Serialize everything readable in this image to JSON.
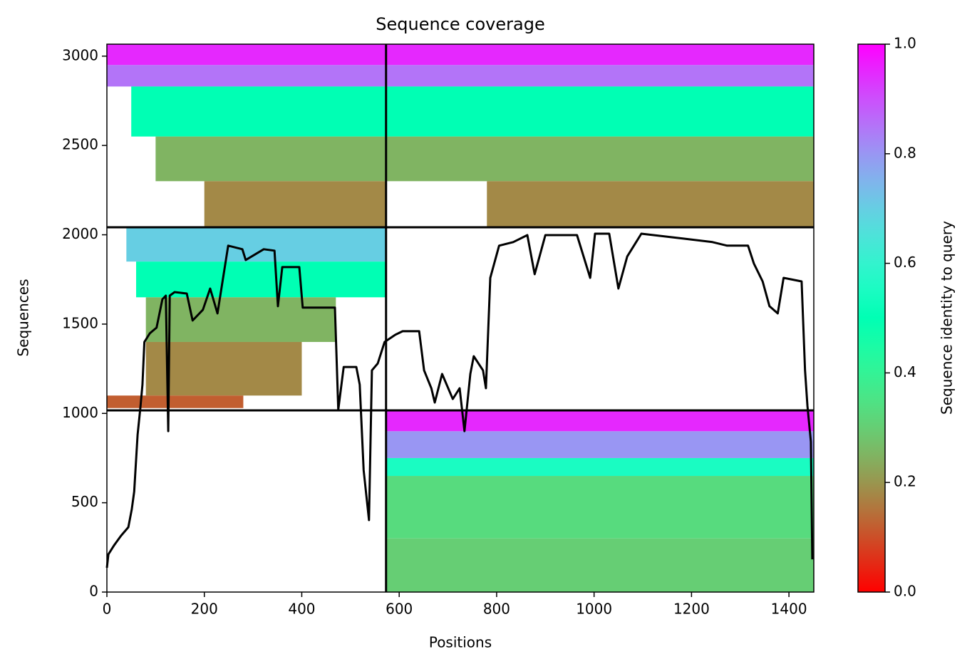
{
  "chart_data": {
    "type": "coverage",
    "title": "Sequence coverage",
    "xlabel": "Positions",
    "ylabel": "Sequences",
    "xlim": [
      0,
      1451
    ],
    "ylim": [
      0,
      3067
    ],
    "xticks": [
      0,
      200,
      400,
      600,
      800,
      1000,
      1200,
      1400
    ],
    "yticks": [
      0,
      500,
      1000,
      1500,
      2000,
      2500,
      3000
    ],
    "colormap": "rainbow_r",
    "colorbar": {
      "label": "Sequence identity to query",
      "lim": [
        0,
        1
      ],
      "ticks": [
        {
          "value": 0,
          "label": "0.0"
        },
        {
          "value": 0.2,
          "label": "0.2"
        },
        {
          "value": 0.4,
          "label": "0.4"
        },
        {
          "value": 0.6,
          "label": "0.6"
        },
        {
          "value": 0.8,
          "label": "0.8"
        },
        {
          "value": 1,
          "label": "1.0"
        }
      ]
    },
    "dividers": {
      "x": [
        573
      ],
      "y": [
        1017,
        2042
      ],
      "color": "#000000"
    },
    "heatmap": [
      {
        "x": [
          0,
          573
        ],
        "y": [
          2950,
          3067
        ],
        "identity": 0.95
      },
      {
        "x": [
          0,
          573
        ],
        "y": [
          2830,
          2950
        ],
        "identity": 0.85
      },
      {
        "x": [
          50,
          573
        ],
        "y": [
          2550,
          2830
        ],
        "identity": 0.5
      },
      {
        "x": [
          100,
          573
        ],
        "y": [
          2300,
          2550
        ],
        "identity": 0.25
      },
      {
        "x": [
          200,
          573
        ],
        "y": [
          2042,
          2300
        ],
        "identity": 0.18
      },
      {
        "x": [
          573,
          1451
        ],
        "y": [
          2950,
          3067
        ],
        "identity": 0.95
      },
      {
        "x": [
          573,
          1451
        ],
        "y": [
          2830,
          2950
        ],
        "identity": 0.85
      },
      {
        "x": [
          573,
          1451
        ],
        "y": [
          2550,
          2830
        ],
        "identity": 0.5
      },
      {
        "x": [
          573,
          1451
        ],
        "y": [
          2300,
          2550
        ],
        "identity": 0.25
      },
      {
        "x": [
          780,
          1451
        ],
        "y": [
          2042,
          2300
        ],
        "identity": 0.18
      },
      {
        "x": [
          40,
          573
        ],
        "y": [
          1850,
          2042
        ],
        "identity": 0.7
      },
      {
        "x": [
          60,
          573
        ],
        "y": [
          1650,
          1850
        ],
        "identity": 0.5
      },
      {
        "x": [
          80,
          470
        ],
        "y": [
          1400,
          1650
        ],
        "identity": 0.25
      },
      {
        "x": [
          80,
          400
        ],
        "y": [
          1100,
          1400
        ],
        "identity": 0.18
      },
      {
        "x": [
          0,
          280
        ],
        "y": [
          1030,
          1100
        ],
        "identity": 0.12
      },
      {
        "x": [
          573,
          1451
        ],
        "y": [
          900,
          1017
        ],
        "identity": 0.95
      },
      {
        "x": [
          573,
          1451
        ],
        "y": [
          750,
          900
        ],
        "identity": 0.8
      },
      {
        "x": [
          573,
          1451
        ],
        "y": [
          650,
          750
        ],
        "identity": 0.55
      },
      {
        "x": [
          573,
          1451
        ],
        "y": [
          300,
          650
        ],
        "identity": 0.33
      },
      {
        "x": [
          573,
          1451
        ],
        "y": [
          0,
          300
        ],
        "identity": 0.3
      }
    ],
    "coverage": {
      "color": "#000000",
      "x": [
        0,
        3,
        15,
        29,
        44,
        51,
        56,
        63,
        69,
        73,
        77,
        88,
        102,
        114,
        121,
        126,
        129,
        139,
        164,
        176,
        197,
        212,
        227,
        249,
        278,
        285,
        322,
        344,
        351,
        360,
        395,
        402,
        468,
        475,
        486,
        512,
        519,
        527,
        538,
        544,
        556,
        570,
        592,
        607,
        641,
        651,
        666,
        673,
        688,
        710,
        724,
        734,
        746,
        753,
        772,
        778,
        787,
        805,
        834,
        863,
        878,
        900,
        936,
        951,
        965,
        992,
        1002,
        1031,
        1050,
        1068,
        1097,
        1185,
        1243,
        1273,
        1316,
        1328,
        1346,
        1360,
        1377,
        1389,
        1426,
        1433,
        1438,
        1445,
        1448
      ],
      "values": [
        136,
        211,
        263,
        315,
        363,
        463,
        562,
        881,
        1041,
        1161,
        1400,
        1448,
        1480,
        1639,
        1659,
        901,
        1659,
        1679,
        1671,
        1520,
        1580,
        1699,
        1560,
        1939,
        1919,
        1859,
        1919,
        1911,
        1600,
        1819,
        1819,
        1592,
        1592,
        1021,
        1260,
        1260,
        1161,
        682,
        403,
        1241,
        1280,
        1400,
        1440,
        1460,
        1460,
        1241,
        1141,
        1061,
        1221,
        1081,
        1141,
        901,
        1221,
        1320,
        1241,
        1141,
        1759,
        1939,
        1959,
        1998,
        1779,
        1998,
        1998,
        1998,
        1998,
        1759,
        2006,
        2006,
        1699,
        1879,
        2006,
        1978,
        1959,
        1939,
        1939,
        1839,
        1739,
        1600,
        1560,
        1759,
        1739,
        1241,
        1041,
        842,
        183
      ]
    }
  }
}
